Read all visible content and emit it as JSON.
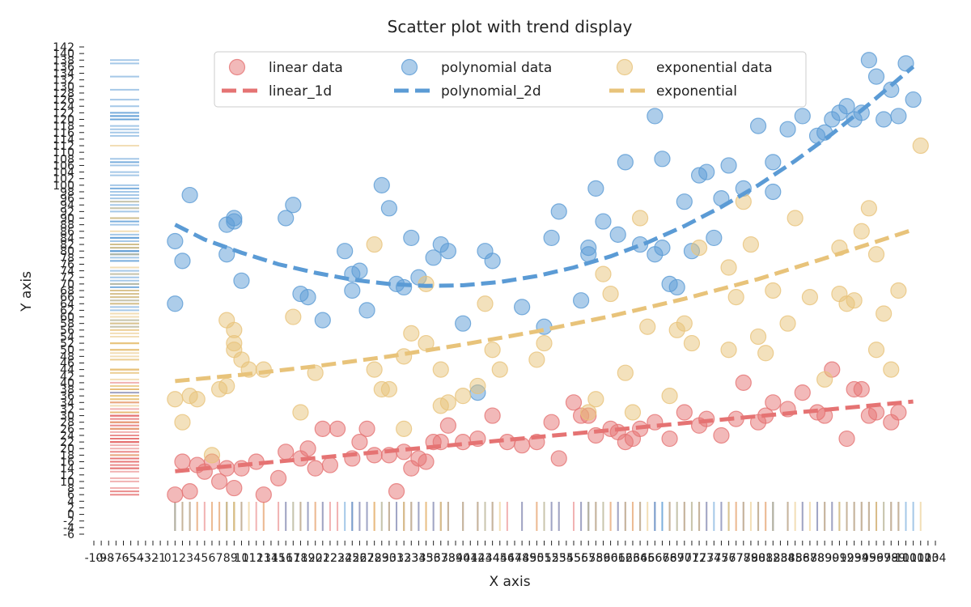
{
  "chart_data": {
    "type": "scatter",
    "title": "Scatter plot with trend display",
    "xlabel": "X axis",
    "ylabel": "Y axis",
    "xlim": [
      -10,
      104
    ],
    "ylim": [
      -6,
      142
    ],
    "x_tick_step": 1,
    "y_tick_step": 2,
    "grid": false,
    "legend_position": "top-center",
    "series": [
      {
        "name": "linear data",
        "kind": "scatter",
        "color": "#e57373",
        "x": [
          1,
          2,
          3,
          4,
          5,
          6,
          7,
          8,
          9,
          10,
          12,
          13,
          15,
          16,
          18,
          19,
          20,
          21,
          22,
          23,
          25,
          26,
          27,
          28,
          30,
          31,
          32,
          33,
          34,
          35,
          36,
          37,
          38,
          40,
          42,
          44,
          46,
          48,
          50,
          52,
          53,
          55,
          56,
          57,
          58,
          60,
          61,
          62,
          63,
          64,
          66,
          68,
          70,
          72,
          73,
          75,
          77,
          78,
          80,
          81,
          82,
          84,
          86,
          88,
          89,
          90,
          92,
          93,
          94,
          95,
          96,
          98,
          99
        ],
        "y": [
          6,
          16,
          7,
          15,
          13,
          16,
          10,
          14,
          8,
          14,
          16,
          6,
          11,
          19,
          17,
          20,
          14,
          26,
          15,
          26,
          17,
          22,
          26,
          18,
          18,
          7,
          19,
          14,
          17,
          16,
          22,
          22,
          27,
          22,
          23,
          30,
          22,
          21,
          22,
          28,
          17,
          34,
          30,
          30,
          24,
          26,
          25,
          22,
          23,
          26,
          28,
          23,
          31,
          27,
          29,
          24,
          29,
          40,
          28,
          30,
          34,
          32,
          37,
          31,
          30,
          44,
          23,
          38,
          38,
          30,
          31,
          28,
          31
        ]
      },
      {
        "name": "linear_1d",
        "kind": "line",
        "color": "#e57373",
        "x": [
          1,
          101
        ],
        "y": [
          13.1,
          34.3
        ]
      },
      {
        "name": "polynomial data",
        "kind": "scatter",
        "color": "#5b9bd5",
        "x": [
          1,
          1,
          2,
          3,
          8,
          8,
          9,
          9,
          10,
          16,
          17,
          18,
          19,
          21,
          24,
          25,
          25,
          26,
          27,
          29,
          30,
          31,
          32,
          33,
          34,
          36,
          37,
          38,
          40,
          42,
          43,
          44,
          48,
          51,
          52,
          53,
          56,
          57,
          57,
          58,
          59,
          61,
          62,
          64,
          66,
          66,
          67,
          67,
          68,
          69,
          70,
          71,
          72,
          73,
          74,
          75,
          76,
          78,
          80,
          82,
          82,
          84,
          86,
          88,
          89,
          90,
          91,
          92,
          93,
          94,
          95,
          96,
          97,
          98,
          99,
          100,
          101
        ],
        "y": [
          83,
          64,
          77,
          97,
          79,
          88,
          89,
          90,
          71,
          90,
          94,
          67,
          66,
          59,
          80,
          73,
          68,
          74,
          62,
          100,
          93,
          70,
          69,
          84,
          72,
          78,
          82,
          80,
          58,
          37,
          80,
          77,
          63,
          57,
          84,
          92,
          65,
          79,
          81,
          99,
          89,
          85,
          107,
          82,
          121,
          79,
          81,
          108,
          70,
          69,
          95,
          80,
          103,
          104,
          84,
          96,
          106,
          99,
          118,
          107,
          98,
          117,
          121,
          115,
          116,
          120,
          122,
          124,
          120,
          122,
          138,
          133,
          120,
          129,
          121,
          137,
          126
        ]
      },
      {
        "name": "polynomial_2d",
        "kind": "line",
        "color": "#5b9bd5",
        "x": [
          1,
          5,
          10,
          15,
          20,
          25,
          30,
          35,
          40,
          45,
          50,
          55,
          60,
          65,
          70,
          75,
          80,
          85,
          90,
          95,
          101
        ],
        "y": [
          88,
          83.5,
          79.5,
          76,
          73.4,
          71.3,
          70,
          69.4,
          69.6,
          70.6,
          72.4,
          75,
          78.4,
          82.6,
          87.6,
          93.4,
          100,
          107.4,
          115.6,
          124.6,
          136
        ]
      },
      {
        "name": "exponential data",
        "kind": "scatter",
        "color": "#e8c37a",
        "x": [
          1,
          2,
          3,
          4,
          6,
          7,
          8,
          8,
          9,
          9,
          9,
          10,
          11,
          13,
          17,
          18,
          20,
          28,
          28,
          29,
          30,
          32,
          32,
          33,
          35,
          35,
          37,
          37,
          38,
          40,
          42,
          43,
          44,
          45,
          50,
          51,
          57,
          58,
          59,
          60,
          62,
          63,
          64,
          65,
          68,
          69,
          70,
          71,
          72,
          76,
          76,
          77,
          78,
          79,
          80,
          81,
          82,
          84,
          85,
          87,
          89,
          91,
          91,
          92,
          93,
          94,
          95,
          96,
          96,
          97,
          98,
          99,
          102
        ],
        "y": [
          35,
          28,
          36,
          35,
          18,
          38,
          39,
          59,
          56,
          52,
          50,
          47,
          44,
          44,
          60,
          31,
          43,
          82,
          44,
          38,
          38,
          48,
          26,
          55,
          70,
          52,
          33,
          44,
          34,
          36,
          39,
          64,
          50,
          44,
          47,
          52,
          31,
          35,
          73,
          67,
          43,
          31,
          90,
          57,
          36,
          56,
          58,
          52,
          81,
          50,
          75,
          66,
          95,
          82,
          54,
          49,
          68,
          58,
          90,
          66,
          41,
          67,
          81,
          64,
          65,
          86,
          93,
          79,
          50,
          61,
          44,
          68,
          112
        ]
      },
      {
        "name": "exponential",
        "kind": "line",
        "color": "#e8c37a",
        "x": [
          1,
          10,
          20,
          30,
          40,
          50,
          60,
          70,
          80,
          90,
          101
        ],
        "y": [
          40.5,
          42.4,
          45,
          48,
          51.6,
          55.6,
          60.2,
          65.5,
          71.5,
          78.5,
          86.5
        ]
      }
    ]
  }
}
